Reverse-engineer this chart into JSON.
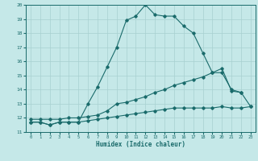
{
  "title": "",
  "xlabel": "Humidex (Indice chaleur)",
  "ylabel": "",
  "bg_color": "#c5e8e8",
  "line_color": "#1a6b6b",
  "grid_color": "#a8d0d0",
  "xlim": [
    -0.5,
    23.5
  ],
  "ylim": [
    11,
    20
  ],
  "yticks": [
    11,
    12,
    13,
    14,
    15,
    16,
    17,
    18,
    19,
    20
  ],
  "xticks": [
    0,
    1,
    2,
    3,
    4,
    5,
    6,
    7,
    8,
    9,
    10,
    11,
    12,
    13,
    14,
    15,
    16,
    17,
    18,
    19,
    20,
    21,
    22,
    23
  ],
  "curve1_x": [
    0,
    1,
    2,
    3,
    4,
    5,
    6,
    7,
    8,
    9,
    10,
    11,
    12,
    13,
    14,
    15,
    16,
    17,
    18,
    19,
    20,
    21,
    22
  ],
  "curve1_y": [
    11.7,
    11.7,
    11.5,
    11.7,
    11.7,
    11.7,
    13.0,
    14.2,
    15.6,
    17.0,
    18.9,
    19.2,
    20.0,
    19.3,
    19.2,
    19.2,
    18.5,
    18.0,
    16.6,
    15.2,
    15.5,
    13.9,
    13.8
  ],
  "curve2_x": [
    0,
    1,
    2,
    3,
    4,
    5,
    6,
    7,
    8,
    9,
    10,
    11,
    12,
    13,
    14,
    15,
    16,
    17,
    18,
    19,
    20,
    21,
    22,
    23
  ],
  "curve2_y": [
    11.9,
    11.9,
    11.9,
    11.9,
    12.0,
    12.0,
    12.1,
    12.2,
    12.5,
    13.0,
    13.1,
    13.3,
    13.5,
    13.8,
    14.0,
    14.3,
    14.5,
    14.7,
    14.9,
    15.2,
    15.2,
    14.0,
    13.8,
    12.8
  ],
  "curve3_x": [
    0,
    1,
    2,
    3,
    4,
    5,
    6,
    7,
    8,
    9,
    10,
    11,
    12,
    13,
    14,
    15,
    16,
    17,
    18,
    19,
    20,
    21,
    22,
    23
  ],
  "curve3_y": [
    11.7,
    11.7,
    11.5,
    11.7,
    11.7,
    11.7,
    11.8,
    11.9,
    12.0,
    12.1,
    12.2,
    12.3,
    12.4,
    12.5,
    12.6,
    12.7,
    12.7,
    12.7,
    12.7,
    12.7,
    12.8,
    12.7,
    12.7,
    12.8
  ]
}
